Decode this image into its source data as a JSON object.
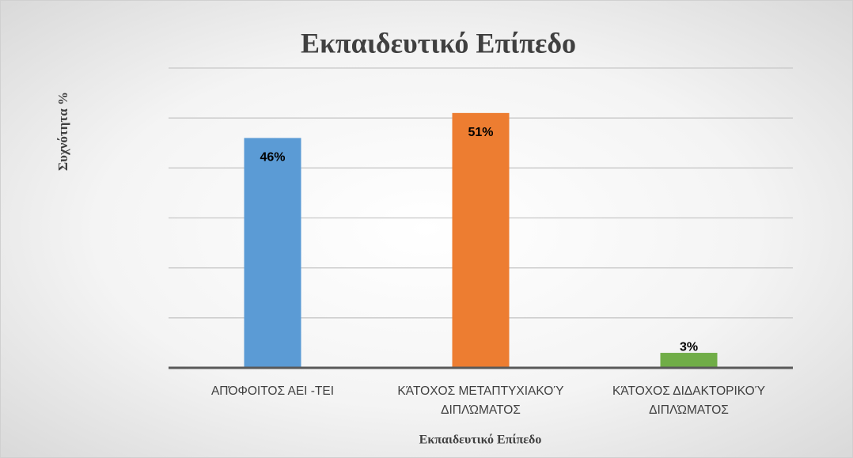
{
  "chart_data": {
    "type": "bar",
    "title": "Εκπαιδευτικό Επίπεδο",
    "y_label": "Συχνότητα %",
    "x_label": "Εκπαιδευτικό Επίπεδο",
    "categories": [
      "ΑΠΌΦΟΙΤΟΣ ΑΕΙ -ΤΕΙ",
      "ΚΆΤΟΧΟΣ ΜΕΤΑΠΤΥΧΙΑΚΟΎ ΔΙΠΛΏΜΑΤΟΣ",
      "ΚΆΤΟΧΟΣ ΔΙΔΑΚΤΟΡΙΚΟΎ ΔΙΠΛΏΜΑΤΟΣ"
    ],
    "values": [
      46,
      51,
      3
    ],
    "value_labels": [
      "46%",
      "51%",
      "3%"
    ],
    "colors": [
      "#5b9bd5",
      "#ed7d31",
      "#70ad47"
    ],
    "ylim": [
      0,
      60
    ],
    "yticks": [
      0,
      10,
      20,
      30,
      40,
      50,
      60
    ],
    "grid": true
  }
}
